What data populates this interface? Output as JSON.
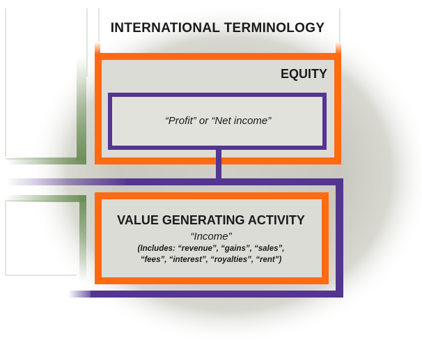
{
  "diagram": {
    "title": "INTERNATIONAL TERMINOLOGY",
    "equity_label": "EQUITY",
    "profit_label": "“Profit”  or  “Net income”",
    "activity_label": "VALUE GENERATING ACTIVITY",
    "income_label": "“Income”",
    "includes_line1": "(Includes: “revenue”, “gains”, “sales”,",
    "includes_line2": "“fees”, “interest”, “royalties”, “rent”)"
  },
  "colors": {
    "orange": "#ff6a13",
    "purple": "#54358f",
    "green": "#6e8f5a",
    "panel": "#dcdcd6",
    "inner_panel": "#e2e2dc"
  }
}
